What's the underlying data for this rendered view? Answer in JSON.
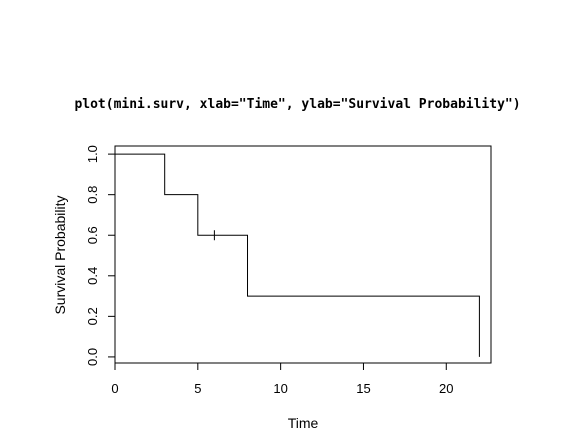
{
  "header": {
    "code_text": "plot(mini.surv, xlab=\"Time\", ylab=\"Survival Probability\")"
  },
  "chart_data": {
    "type": "line",
    "title": "",
    "xlabel": "Time",
    "ylabel": "Survival Probability",
    "xlim": [
      0,
      22.7
    ],
    "ylim": [
      -0.03,
      1.04
    ],
    "x_ticks": [
      0,
      5,
      10,
      15,
      20
    ],
    "y_ticks": [
      0.0,
      0.2,
      0.4,
      0.6,
      0.8,
      1.0
    ],
    "x_tick_labels": [
      "0",
      "5",
      "10",
      "15",
      "20"
    ],
    "y_tick_labels": [
      "0.0",
      "0.2",
      "0.4",
      "0.6",
      "0.8",
      "1.0"
    ],
    "grid": false,
    "series": [
      {
        "style": "step",
        "color": "#000000",
        "x": [
          0,
          3,
          5,
          8,
          22
        ],
        "y": [
          1.0,
          0.8,
          0.6,
          0.3,
          0.0
        ]
      }
    ],
    "censor_marks": [
      {
        "x": 6,
        "y": 0.6
      }
    ]
  }
}
